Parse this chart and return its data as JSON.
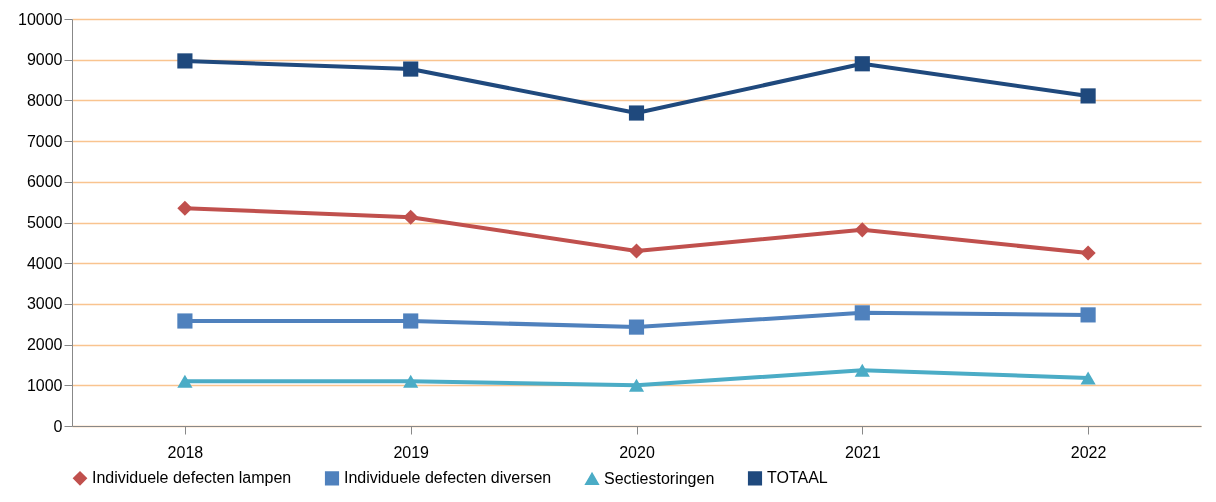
{
  "chart_data": {
    "type": "line",
    "categories": [
      "2018",
      "2019",
      "2020",
      "2021",
      "2022"
    ],
    "series": [
      {
        "name": "Individuele defecten lampen",
        "color": "#c0504d",
        "marker": "diamond",
        "values": [
          5350,
          5130,
          4300,
          4820,
          4250
        ]
      },
      {
        "name": "Individuele defecten diversen",
        "color": "#4f81bd",
        "marker": "square",
        "values": [
          2580,
          2580,
          2430,
          2780,
          2730
        ]
      },
      {
        "name": "Sectiestoringen",
        "color": "#4bacc6",
        "marker": "triangle",
        "values": [
          1100,
          1100,
          1000,
          1370,
          1180
        ]
      },
      {
        "name": "TOTAAL",
        "color": "#1f497d",
        "marker": "square",
        "values": [
          8970,
          8770,
          7690,
          8900,
          8110
        ]
      }
    ],
    "ylim": [
      0,
      10000
    ],
    "yticks": [
      0,
      1000,
      2000,
      3000,
      4000,
      5000,
      6000,
      7000,
      8000,
      9000,
      10000
    ],
    "grid": "y",
    "legend": "bottom"
  }
}
